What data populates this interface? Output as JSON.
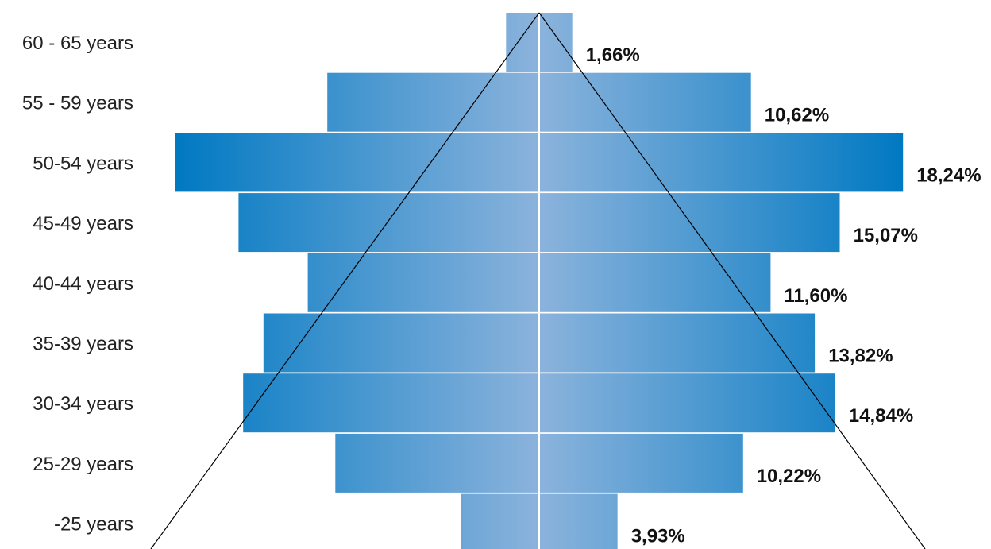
{
  "chart_data": {
    "type": "bar",
    "orientation": "horizontal-centered",
    "categories": [
      "60 - 65 years",
      "55 - 59 years",
      "50-54 years",
      "45-49 years",
      "40-44 years",
      "35-39 years",
      "30-34 years",
      "25-29 years",
      "-25 years"
    ],
    "values": [
      1.66,
      10.62,
      18.24,
      15.07,
      11.6,
      13.82,
      14.84,
      10.22,
      3.93
    ],
    "value_labels": [
      "1,66%",
      "10,62%",
      "18,24%",
      "15,07%",
      "11,60%",
      "13,82%",
      "14,84%",
      "10,22%",
      "3,93%"
    ],
    "unit": "%",
    "title": "",
    "xlabel": "",
    "ylabel": "",
    "grid": false,
    "legend": "none",
    "colors": {
      "bar_edge": "#0079c2",
      "bar_center": "#8bb3dc",
      "outline": "#000000"
    }
  }
}
